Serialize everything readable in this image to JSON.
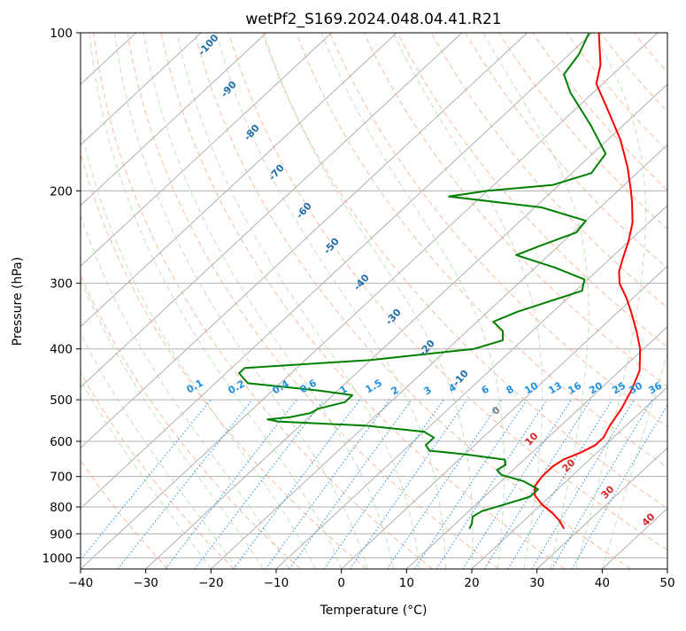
{
  "chart_data": {
    "type": "line",
    "subtype": "skew-t log-p",
    "title": "wetPf2_S169.2024.048.04.41.R21",
    "xlabel": "Temperature (°C)",
    "ylabel": "Pressure (hPa)",
    "xlim": [
      -40,
      50
    ],
    "ylim": [
      1050,
      100
    ],
    "y_scale": "log",
    "grid": true,
    "x_ticks": [
      -40,
      -30,
      -20,
      -10,
      0,
      10,
      20,
      30,
      40,
      50
    ],
    "y_ticks": [
      100,
      200,
      300,
      400,
      500,
      600,
      700,
      800,
      900,
      1000
    ],
    "series": [
      {
        "color": "#ff0000",
        "points": [
          {
            "p": 880,
            "t": 27.5
          },
          {
            "p": 850,
            "t": 25.5
          },
          {
            "p": 820,
            "t": 23.0
          },
          {
            "p": 790,
            "t": 20.0
          },
          {
            "p": 760,
            "t": 17.5
          },
          {
            "p": 730,
            "t": 16.0
          },
          {
            "p": 700,
            "t": 15.5
          },
          {
            "p": 670,
            "t": 15.5
          },
          {
            "p": 650,
            "t": 16.0
          },
          {
            "p": 630,
            "t": 17.5
          },
          {
            "p": 610,
            "t": 18.5
          },
          {
            "p": 590,
            "t": 18.5
          },
          {
            "p": 560,
            "t": 17.5
          },
          {
            "p": 520,
            "t": 16.5
          },
          {
            "p": 480,
            "t": 15.0
          },
          {
            "p": 440,
            "t": 13.0
          },
          {
            "p": 400,
            "t": 9.5
          },
          {
            "p": 370,
            "t": 6.0
          },
          {
            "p": 340,
            "t": 2.0
          },
          {
            "p": 320,
            "t": -1.0
          },
          {
            "p": 300,
            "t": -4.5
          },
          {
            "p": 285,
            "t": -6.5
          },
          {
            "p": 270,
            "t": -8.0
          },
          {
            "p": 250,
            "t": -10.0
          },
          {
            "p": 230,
            "t": -12.5
          },
          {
            "p": 210,
            "t": -16.0
          },
          {
            "p": 200,
            "t": -18.0
          },
          {
            "p": 180,
            "t": -22.5
          },
          {
            "p": 160,
            "t": -28.0
          },
          {
            "p": 140,
            "t": -35.0
          },
          {
            "p": 125,
            "t": -41.0
          },
          {
            "p": 115,
            "t": -43.5
          },
          {
            "p": 100,
            "t": -49.0
          }
        ]
      },
      {
        "color": "#008000",
        "points": [
          {
            "p": 880,
            "t": 13.0
          },
          {
            "p": 860,
            "t": 12.5
          },
          {
            "p": 835,
            "t": 11.5
          },
          {
            "p": 815,
            "t": 12.0
          },
          {
            "p": 790,
            "t": 14.5
          },
          {
            "p": 765,
            "t": 17.0
          },
          {
            "p": 740,
            "t": 17.0
          },
          {
            "p": 715,
            "t": 13.5
          },
          {
            "p": 695,
            "t": 9.0
          },
          {
            "p": 680,
            "t": 7.5
          },
          {
            "p": 665,
            "t": 8.0
          },
          {
            "p": 650,
            "t": 7.0
          },
          {
            "p": 635,
            "t": 0.0
          },
          {
            "p": 625,
            "t": -6.0
          },
          {
            "p": 610,
            "t": -7.5
          },
          {
            "p": 590,
            "t": -7.5
          },
          {
            "p": 575,
            "t": -10.0
          },
          {
            "p": 560,
            "t": -20.0
          },
          {
            "p": 550,
            "t": -34.0
          },
          {
            "p": 545,
            "t": -36.0
          },
          {
            "p": 540,
            "t": -33.0
          },
          {
            "p": 530,
            "t": -30.5
          },
          {
            "p": 520,
            "t": -30.0
          },
          {
            "p": 505,
            "t": -27.0
          },
          {
            "p": 490,
            "t": -27.0
          },
          {
            "p": 480,
            "t": -33.0
          },
          {
            "p": 465,
            "t": -45.0
          },
          {
            "p": 445,
            "t": -48.0
          },
          {
            "p": 435,
            "t": -48.0
          },
          {
            "p": 420,
            "t": -30.0
          },
          {
            "p": 400,
            "t": -16.0
          },
          {
            "p": 385,
            "t": -13.0
          },
          {
            "p": 370,
            "t": -14.5
          },
          {
            "p": 355,
            "t": -17.5
          },
          {
            "p": 340,
            "t": -15.5
          },
          {
            "p": 310,
            "t": -9.0
          },
          {
            "p": 295,
            "t": -10.5
          },
          {
            "p": 280,
            "t": -17.0
          },
          {
            "p": 265,
            "t": -25.0
          },
          {
            "p": 255,
            "t": -23.0
          },
          {
            "p": 240,
            "t": -19.5
          },
          {
            "p": 228,
            "t": -20.0
          },
          {
            "p": 215,
            "t": -29.0
          },
          {
            "p": 205,
            "t": -45.0
          },
          {
            "p": 200,
            "t": -40.0
          },
          {
            "p": 195,
            "t": -31.0
          },
          {
            "p": 185,
            "t": -27.0
          },
          {
            "p": 170,
            "t": -28.0
          },
          {
            "p": 150,
            "t": -35.0
          },
          {
            "p": 130,
            "t": -43.5
          },
          {
            "p": 120,
            "t": -47.5
          },
          {
            "p": 110,
            "t": -48.5
          },
          {
            "p": 100,
            "t": -50.5
          }
        ]
      }
    ],
    "mixing_ratio_labels": [
      "0.1",
      "0.2",
      "0.4",
      "0.6",
      "1",
      "1.5",
      "2",
      "3",
      "4",
      "6",
      "8",
      "10",
      "13",
      "16",
      "20",
      "25",
      "30",
      "36"
    ],
    "dry_adiabat_labels": [
      "-100",
      "-90",
      "-80",
      "-70",
      "-60",
      "-50",
      "-40",
      "-30",
      "-20",
      "-10"
    ],
    "moist_adiabat_labels": [
      "0",
      "10",
      "20",
      "30",
      "40"
    ],
    "colors": {
      "temperature": "#ff0000",
      "dewpoint": "#008000",
      "dry_adiabat": "#f4a582",
      "moist_adiabat": "#a6d7a0",
      "mixing_ratio": "#1f8fe0",
      "isotherm": "#808080",
      "dry_label": "#1f6eaa",
      "moist_label": "#d62728",
      "mixing_label": "#1f8fe0",
      "zero_label": "#808080"
    }
  }
}
